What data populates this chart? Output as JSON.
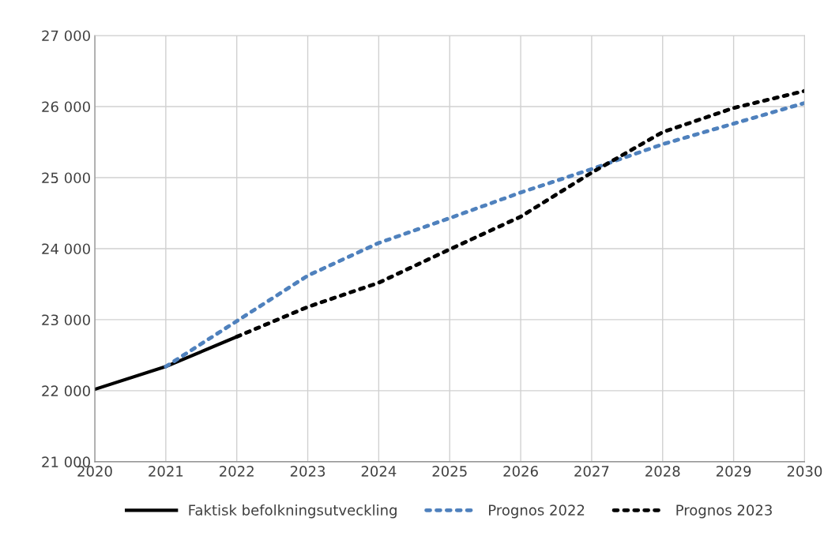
{
  "chart_data": {
    "type": "line",
    "x": [
      2020,
      2021,
      2022,
      2023,
      2024,
      2025,
      2026,
      2027,
      2028,
      2029,
      2030
    ],
    "series": [
      {
        "name": "Faktisk befolkningsutveckling",
        "color": "#000000",
        "line_style": "solid",
        "values": [
          22020,
          22340,
          22760,
          null,
          null,
          null,
          null,
          null,
          null,
          null,
          null
        ]
      },
      {
        "name": "Prognos 2022",
        "color": "#4f81bd",
        "line_style": "dotted",
        "values": [
          null,
          22340,
          22980,
          23620,
          24080,
          24430,
          24790,
          25120,
          25470,
          25760,
          26050
        ]
      },
      {
        "name": "Prognos 2023",
        "color": "#000000",
        "line_style": "dotted",
        "values": [
          null,
          null,
          22760,
          23180,
          23520,
          23990,
          24450,
          25070,
          25640,
          25980,
          26220
        ]
      }
    ],
    "xlim": [
      2020,
      2030
    ],
    "xticks": [
      2020,
      2021,
      2022,
      2023,
      2024,
      2025,
      2026,
      2027,
      2028,
      2029,
      2030
    ],
    "ylim": [
      21000,
      27000
    ],
    "yticks": [
      {
        "value": 21000,
        "label": "21 000"
      },
      {
        "value": 22000,
        "label": "22 000"
      },
      {
        "value": 23000,
        "label": "23 000"
      },
      {
        "value": 24000,
        "label": "24 000"
      },
      {
        "value": 25000,
        "label": "25 000"
      },
      {
        "value": 26000,
        "label": "26 000"
      },
      {
        "value": 27000,
        "label": "27 000"
      }
    ],
    "grid": true,
    "legend": "bottom",
    "marker": "none"
  }
}
